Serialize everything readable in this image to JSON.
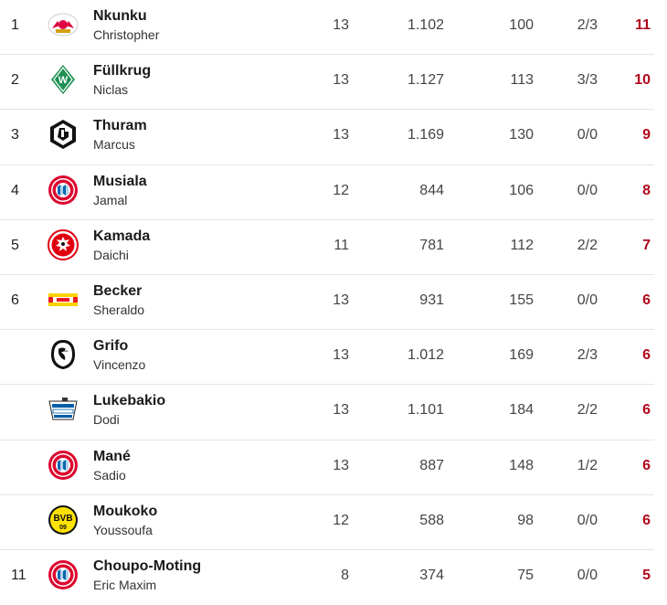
{
  "rows": [
    {
      "rank": "1",
      "club": "rb-leipzig",
      "lastname": "Nkunku",
      "firstname": "Christopher",
      "games": "13",
      "minutes": "1.102",
      "mpg": "100",
      "pen": "2/3",
      "goals": "11"
    },
    {
      "rank": "2",
      "club": "werder-bremen",
      "lastname": "Füllkrug",
      "firstname": "Niclas",
      "games": "13",
      "minutes": "1.127",
      "mpg": "113",
      "pen": "3/3",
      "goals": "10"
    },
    {
      "rank": "3",
      "club": "gladbach",
      "lastname": "Thuram",
      "firstname": "Marcus",
      "games": "13",
      "minutes": "1.169",
      "mpg": "130",
      "pen": "0/0",
      "goals": "9"
    },
    {
      "rank": "4",
      "club": "bayern",
      "lastname": "Musiala",
      "firstname": "Jamal",
      "games": "12",
      "minutes": "844",
      "mpg": "106",
      "pen": "0/0",
      "goals": "8"
    },
    {
      "rank": "5",
      "club": "frankfurt",
      "lastname": "Kamada",
      "firstname": "Daichi",
      "games": "11",
      "minutes": "781",
      "mpg": "112",
      "pen": "2/2",
      "goals": "7"
    },
    {
      "rank": "6",
      "club": "union",
      "lastname": "Becker",
      "firstname": "Sheraldo",
      "games": "13",
      "minutes": "931",
      "mpg": "155",
      "pen": "0/0",
      "goals": "6"
    },
    {
      "rank": "",
      "club": "freiburg",
      "lastname": "Grifo",
      "firstname": "Vincenzo",
      "games": "13",
      "minutes": "1.012",
      "mpg": "169",
      "pen": "2/3",
      "goals": "6"
    },
    {
      "rank": "",
      "club": "hertha",
      "lastname": "Lukebakio",
      "firstname": "Dodi",
      "games": "13",
      "minutes": "1.101",
      "mpg": "184",
      "pen": "2/2",
      "goals": "6"
    },
    {
      "rank": "",
      "club": "bayern",
      "lastname": "Mané",
      "firstname": "Sadio",
      "games": "13",
      "minutes": "887",
      "mpg": "148",
      "pen": "1/2",
      "goals": "6"
    },
    {
      "rank": "",
      "club": "dortmund",
      "lastname": "Moukoko",
      "firstname": "Youssoufa",
      "games": "12",
      "minutes": "588",
      "mpg": "98",
      "pen": "0/0",
      "goals": "6"
    },
    {
      "rank": "11",
      "club": "bayern",
      "lastname": "Choupo-Moting",
      "firstname": "Eric Maxim",
      "games": "8",
      "minutes": "374",
      "mpg": "75",
      "pen": "0/0",
      "goals": "5"
    }
  ],
  "colors": {
    "goals": "#b0061c",
    "divider": "#e6e6e6",
    "bayern_red": "#dc052d",
    "bayern_blue": "#0066b2",
    "bremen_green": "#1d9053",
    "frankfurt_red": "#e1000f",
    "dortmund_yellow": "#fde100",
    "hertha_blue": "#005ca9",
    "union_red": "#eb1923",
    "leipzig_red": "#dd0741"
  }
}
